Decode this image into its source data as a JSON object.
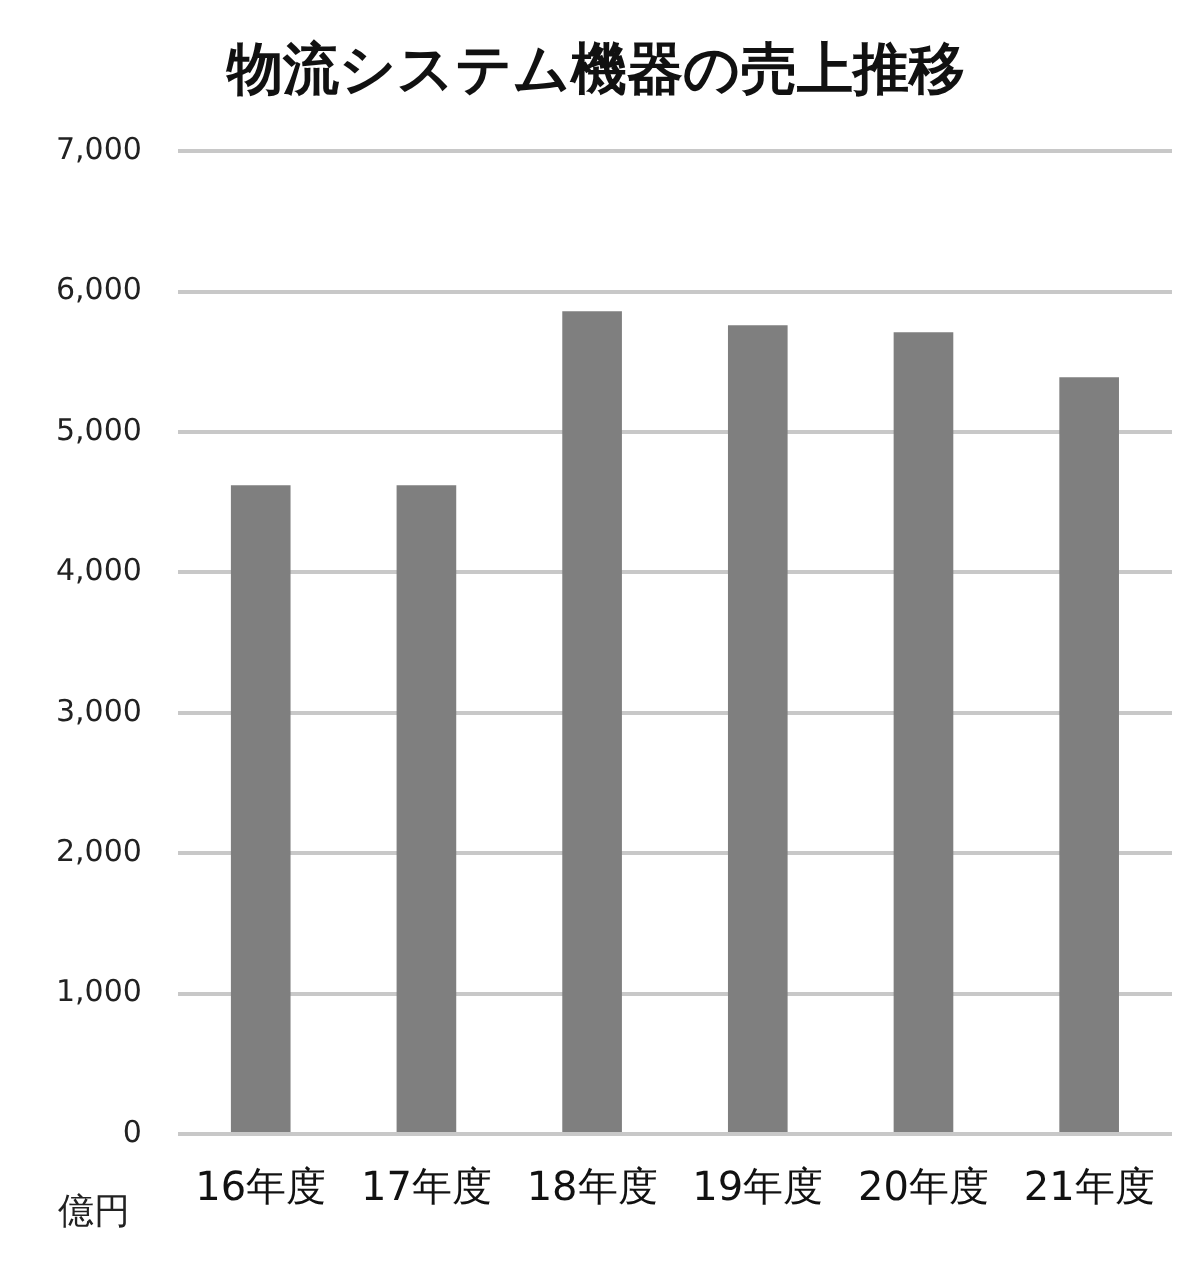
{
  "chart_data": {
    "type": "bar",
    "title": "物流システム機器の売上推移",
    "ylabel": "億円",
    "categories": [
      "16年度",
      "17年度",
      "18年度",
      "19年度",
      "20年度",
      "21年度"
    ],
    "values": [
      4620,
      4620,
      5860,
      5760,
      5710,
      5390
    ],
    "color": "#7f7f7f",
    "ylim": [
      0,
      7000
    ],
    "yticks": [
      0,
      {
        "value": 1000,
        "label": "1,000"
      },
      {
        "value": 2000,
        "label": "2,000"
      },
      {
        "value": 3000,
        "label": "3,000"
      },
      {
        "value": 4000,
        "label": "4,000"
      },
      {
        "value": 5000,
        "label": "5,000"
      },
      {
        "value": 6000,
        "label": "6,000"
      },
      {
        "value": 7000,
        "label": "7,000"
      }
    ],
    "grid": "y"
  }
}
